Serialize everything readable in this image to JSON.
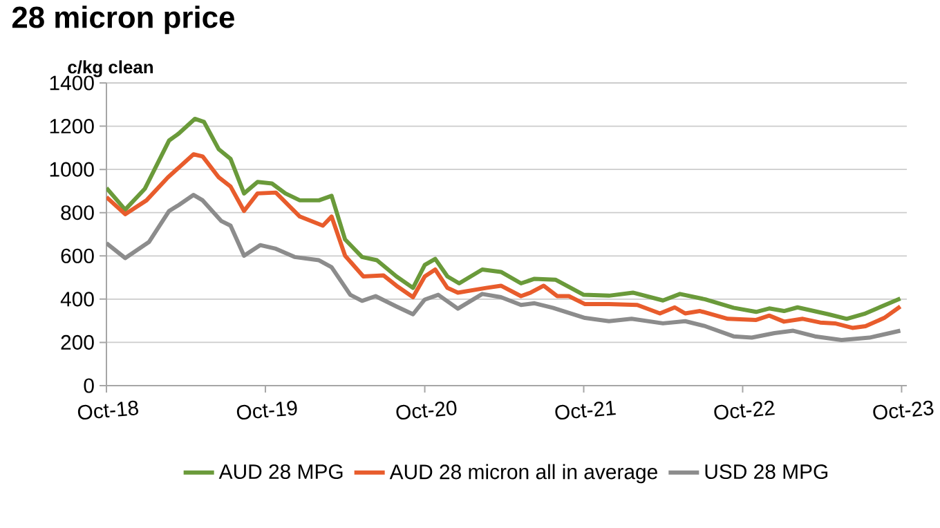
{
  "chart_data": {
    "type": "line",
    "title": "28 micron price",
    "ylabel": "c/kg clean",
    "xlim": [
      "2018-10-01",
      "2023-10-13"
    ],
    "ylim": [
      0,
      1400
    ],
    "xticks": [
      {
        "value": "2018-10-01",
        "label": "Oct-18"
      },
      {
        "value": "2019-10-01",
        "label": "Oct-19"
      },
      {
        "value": "2020-10-01",
        "label": "Oct-20"
      },
      {
        "value": "2021-10-01",
        "label": "Oct-21"
      },
      {
        "value": "2022-10-01",
        "label": "Oct-22"
      },
      {
        "value": "2023-10-01",
        "label": "Oct-23"
      }
    ],
    "yticks": [
      0,
      200,
      400,
      600,
      800,
      1000,
      1200,
      1400
    ],
    "grid": "y",
    "legend": "bottom",
    "marker": "none",
    "line_style": "solid",
    "series": [
      {
        "name": "AUD 28 MPG",
        "color": "#6a9a3a",
        "x": [
          "2018-10-01",
          "2018-11-13",
          "2018-12-28",
          "2019-02-22",
          "2019-03-16",
          "2019-04-22",
          "2019-05-13",
          "2019-06-16",
          "2019-07-13",
          "2019-08-13",
          "2019-09-13",
          "2019-10-16",
          "2019-11-16",
          "2019-12-19",
          "2020-02-01",
          "2020-03-01",
          "2020-04-01",
          "2020-05-10",
          "2020-06-13",
          "2020-07-28",
          "2020-09-04",
          "2020-10-01",
          "2020-10-25",
          "2020-11-22",
          "2020-12-19",
          "2021-02-10",
          "2021-03-25",
          "2021-05-10",
          "2021-06-10",
          "2021-07-28",
          "2021-10-01",
          "2021-11-28",
          "2022-01-22",
          "2022-04-01",
          "2022-05-10",
          "2022-07-07",
          "2022-09-10",
          "2022-11-01",
          "2022-12-01",
          "2023-01-04",
          "2023-02-04",
          "2023-04-16",
          "2023-05-28",
          "2023-07-10",
          "2023-09-28"
        ],
        "values": [
          914,
          814,
          910,
          1134,
          1166,
          1234,
          1220,
          1093,
          1049,
          889,
          942,
          935,
          889,
          857,
          857,
          878,
          676,
          595,
          580,
          505,
          452,
          558,
          586,
          505,
          473,
          537,
          526,
          473,
          494,
          490,
          420,
          416,
          430,
          394,
          424,
          399,
          360,
          341,
          357,
          345,
          362,
          330,
          309,
          334,
          403
        ]
      },
      {
        "name": "AUD 28 micron all in average",
        "color": "#e85c2c",
        "x": [
          "2018-10-01",
          "2018-11-13",
          "2019-01-01",
          "2019-02-19",
          "2019-04-19",
          "2019-05-10",
          "2019-06-16",
          "2019-07-13",
          "2019-08-13",
          "2019-09-13",
          "2019-10-25",
          "2019-12-19",
          "2020-02-10",
          "2020-03-01",
          "2020-04-01",
          "2020-05-13",
          "2020-06-28",
          "2020-07-28",
          "2020-09-04",
          "2020-10-01",
          "2020-10-25",
          "2020-11-22",
          "2020-12-16",
          "2021-02-19",
          "2021-03-25",
          "2021-05-10",
          "2021-06-01",
          "2021-07-01",
          "2021-08-01",
          "2021-08-28",
          "2021-10-04",
          "2021-11-28",
          "2022-02-01",
          "2022-03-25",
          "2022-04-28",
          "2022-05-22",
          "2022-06-25",
          "2022-08-28",
          "2022-11-01",
          "2022-12-01",
          "2023-01-04",
          "2023-02-16",
          "2023-03-28",
          "2023-05-01",
          "2023-06-10",
          "2023-07-10",
          "2023-08-22",
          "2023-09-28"
        ],
        "values": [
          872,
          793,
          857,
          963,
          1070,
          1060,
          963,
          921,
          808,
          889,
          893,
          782,
          740,
          782,
          601,
          505,
          510,
          462,
          409,
          505,
          537,
          452,
          430,
          452,
          462,
          414,
          430,
          462,
          414,
          414,
          377,
          377,
          373,
          334,
          362,
          334,
          345,
          309,
          304,
          324,
          296,
          309,
          292,
          288,
          267,
          275,
          313,
          366
        ]
      },
      {
        "name": "USD 28 MPG",
        "color": "#8c8c8c",
        "x": [
          "2018-10-01",
          "2018-11-13",
          "2019-01-07",
          "2019-02-22",
          "2019-03-16",
          "2019-04-19",
          "2019-05-10",
          "2019-06-22",
          "2019-07-13",
          "2019-08-13",
          "2019-09-19",
          "2019-10-25",
          "2019-12-07",
          "2020-02-01",
          "2020-03-01",
          "2020-04-13",
          "2020-05-10",
          "2020-06-10",
          "2020-07-28",
          "2020-09-04",
          "2020-10-01",
          "2020-11-01",
          "2020-12-16",
          "2021-02-10",
          "2021-03-25",
          "2021-05-10",
          "2021-06-10",
          "2021-07-22",
          "2021-10-04",
          "2021-11-28",
          "2022-01-19",
          "2022-04-01",
          "2022-05-22",
          "2022-07-07",
          "2022-09-10",
          "2022-10-22",
          "2022-12-13",
          "2023-01-25",
          "2023-03-16",
          "2023-05-16",
          "2023-07-19",
          "2023-09-28"
        ],
        "values": [
          659,
          590,
          665,
          808,
          835,
          882,
          857,
          761,
          740,
          601,
          650,
          633,
          595,
          580,
          548,
          420,
          392,
          414,
          366,
          330,
          398,
          420,
          356,
          424,
          409,
          373,
          381,
          360,
          313,
          298,
          309,
          288,
          298,
          275,
          228,
          222,
          243,
          254,
          228,
          211,
          222,
          254
        ]
      }
    ]
  }
}
